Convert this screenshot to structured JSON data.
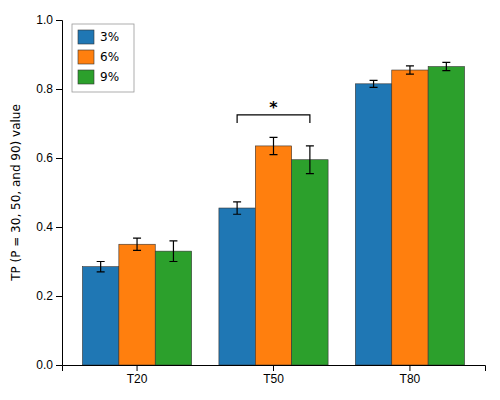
{
  "chart_data": {
    "type": "bar",
    "categories": [
      "T20",
      "T50",
      "T80"
    ],
    "series": [
      {
        "name": "3%",
        "values": [
          0.285,
          0.455,
          0.815
        ],
        "errors": [
          0.015,
          0.018,
          0.01
        ]
      },
      {
        "name": "6%",
        "values": [
          0.35,
          0.635,
          0.855
        ],
        "errors": [
          0.018,
          0.025,
          0.012
        ]
      },
      {
        "name": "9%",
        "values": [
          0.33,
          0.595,
          0.865
        ],
        "errors": [
          0.03,
          0.04,
          0.012
        ]
      }
    ],
    "ylabel": "TP (P = 30, 50, and 90) value",
    "ylim": [
      0.0,
      1.0
    ],
    "yticks": [
      {
        "value": 0.0,
        "label": "0.0"
      },
      0.2,
      0.4,
      0.6,
      0.8,
      {
        "value": 1.0,
        "label": "1.0"
      }
    ],
    "annotations": [
      {
        "text": "*",
        "category": "T50",
        "series": [
          "3%",
          "9%"
        ],
        "y": 0.725
      }
    ],
    "legend": "upper left",
    "grid": false
  }
}
